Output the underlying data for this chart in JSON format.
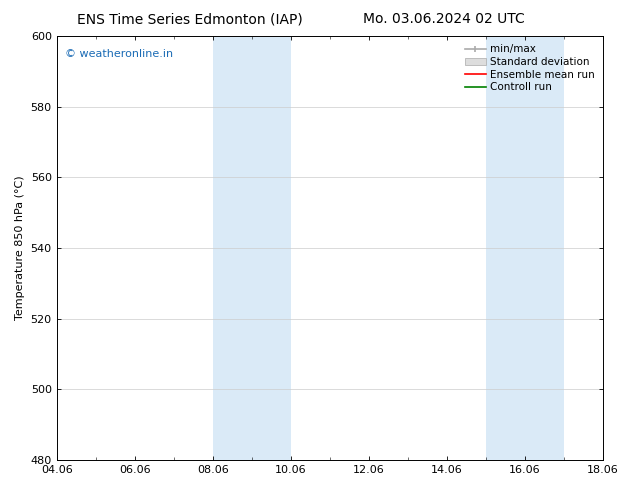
{
  "title_left": "ENS Time Series Edmonton (IAP)",
  "title_right": "Mo. 03.06.2024 02 UTC",
  "ylabel": "Temperature 850 hPa (°C)",
  "ylim": [
    480,
    600
  ],
  "yticks": [
    480,
    500,
    520,
    540,
    560,
    580,
    600
  ],
  "xtick_labels": [
    "04.06",
    "06.06",
    "08.06",
    "10.06",
    "12.06",
    "14.06",
    "16.06",
    "18.06"
  ],
  "xtick_positions": [
    0,
    2,
    4,
    6,
    8,
    10,
    12,
    14
  ],
  "xlim": [
    0,
    14
  ],
  "shaded_bands": [
    {
      "x_start": 4.0,
      "x_end": 6.0
    },
    {
      "x_start": 11.0,
      "x_end": 13.0
    }
  ],
  "shaded_color": "#daeaf7",
  "watermark_text": "© weatheronline.in",
  "watermark_color": "#1a6bb5",
  "legend_labels": [
    "min/max",
    "Standard deviation",
    "Ensemble mean run",
    "Controll run"
  ],
  "legend_colors": [
    "#aaaaaa",
    "#cccccc",
    "red",
    "green"
  ],
  "background_color": "#ffffff",
  "grid_color": "#cccccc",
  "title_fontsize": 10,
  "tick_fontsize": 8,
  "ylabel_fontsize": 8,
  "watermark_fontsize": 8,
  "legend_fontsize": 7.5
}
